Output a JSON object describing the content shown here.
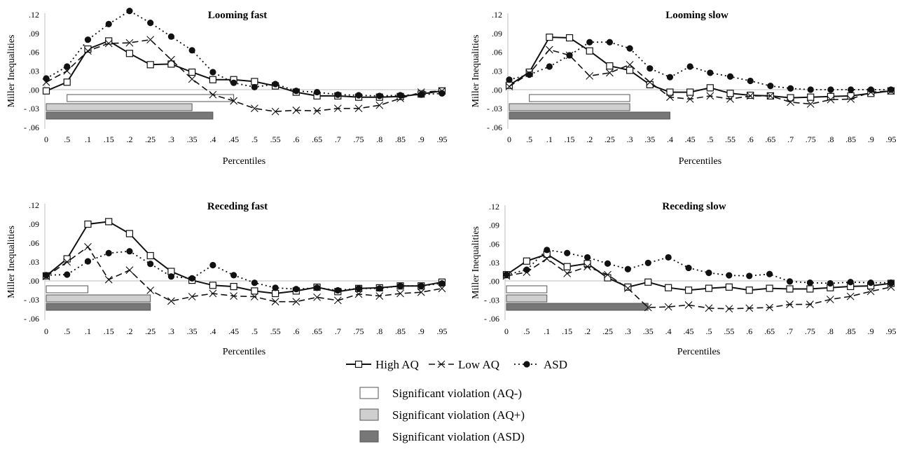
{
  "chart_data": [
    {
      "type": "line",
      "title": "Looming fast",
      "ylabel": "Miller Inequalities",
      "xlabel": "Percentiles",
      "x": [
        "0",
        ".5",
        ".1",
        ".15",
        ".2",
        ".25",
        ".3",
        ".35",
        ".4",
        ".45",
        ".5",
        ".55",
        ".6",
        ".65",
        ".7",
        ".75",
        ".8",
        ".85",
        ".9",
        ".95"
      ],
      "yticks": [
        ".12",
        ".09",
        ".06",
        ".03",
        ".00",
        "- .03",
        "- .06"
      ],
      "ylim": [
        -0.06,
        0.12
      ],
      "series": [
        {
          "name": "High AQ",
          "values": [
            -0.002,
            0.012,
            0.065,
            0.078,
            0.058,
            0.04,
            0.041,
            0.028,
            0.016,
            0.016,
            0.013,
            0.006,
            -0.004,
            -0.01,
            -0.01,
            -0.012,
            -0.012,
            -0.011,
            -0.007,
            -0.002
          ]
        },
        {
          "name": "Low AQ",
          "values": [
            0.012,
            0.03,
            0.062,
            0.074,
            0.075,
            0.08,
            0.048,
            0.017,
            -0.008,
            -0.018,
            -0.03,
            -0.035,
            -0.033,
            -0.034,
            -0.03,
            -0.03,
            -0.025,
            -0.014,
            -0.004,
            -0.002
          ]
        },
        {
          "name": "ASD",
          "values": [
            0.018,
            0.037,
            0.08,
            0.105,
            0.126,
            0.107,
            0.085,
            0.063,
            0.028,
            0.011,
            0.004,
            0.009,
            -0.002,
            -0.004,
            -0.008,
            -0.009,
            -0.01,
            -0.009,
            -0.008,
            -0.006
          ]
        }
      ],
      "significance": {
        "AQ-": [
          ".5",
          ".45"
        ],
        "AQ+": [
          "0",
          ".35"
        ],
        "ASD": [
          "0",
          ".4"
        ]
      }
    },
    {
      "type": "line",
      "title": "Looming slow",
      "ylabel": "Miller Inequalities",
      "xlabel": "Percentiles",
      "x": [
        "0",
        ".5",
        ".1",
        ".15",
        ".2",
        ".25",
        ".3",
        ".35",
        ".4",
        ".45",
        ".5",
        ".55",
        ".6",
        ".65",
        ".7",
        ".75",
        ".8",
        ".85",
        ".9",
        ".95"
      ],
      "yticks": [
        ".12",
        ".09",
        ".06",
        ".03",
        ".00",
        "- .03",
        "- .06"
      ],
      "ylim": [
        -0.06,
        0.12
      ],
      "series": [
        {
          "name": "High AQ",
          "values": [
            0.007,
            0.028,
            0.084,
            0.083,
            0.062,
            0.038,
            0.031,
            0.008,
            -0.004,
            -0.004,
            0.003,
            -0.006,
            -0.009,
            -0.01,
            -0.013,
            -0.012,
            -0.011,
            -0.01,
            -0.006,
            -0.002
          ]
        },
        {
          "name": "Low AQ",
          "values": [
            0.005,
            0.026,
            0.064,
            0.055,
            0.022,
            0.027,
            0.04,
            0.012,
            -0.012,
            -0.015,
            -0.01,
            -0.015,
            -0.01,
            -0.01,
            -0.02,
            -0.023,
            -0.016,
            -0.015,
            -0.004,
            -0.002
          ]
        },
        {
          "name": "ASD",
          "values": [
            0.016,
            0.024,
            0.037,
            0.055,
            0.076,
            0.076,
            0.066,
            0.034,
            0.02,
            0.037,
            0.027,
            0.021,
            0.014,
            0.006,
            0.002,
            0.0,
            0.0,
            0.0,
            0.0,
            0.0
          ]
        }
      ],
      "significance": {
        "AQ-": [
          ".5",
          ".3"
        ],
        "AQ+": [
          "0",
          ".3"
        ],
        "ASD": [
          "0",
          ".4"
        ]
      }
    },
    {
      "type": "line",
      "title": "Receding fast",
      "ylabel": "Miller Inequalities",
      "xlabel": "Percentiles",
      "x": [
        "0",
        ".5",
        ".1",
        ".15",
        ".2",
        ".25",
        ".3",
        ".35",
        ".4",
        ".45",
        ".5",
        ".55",
        ".6",
        ".65",
        ".7",
        ".75",
        ".8",
        ".85",
        ".9",
        ".95"
      ],
      "yticks": [
        ".12",
        ".09",
        ".06",
        ".03",
        ".00",
        "- .03",
        "- .06"
      ],
      "ylim": [
        -0.06,
        0.12
      ],
      "series": [
        {
          "name": "High AQ",
          "values": [
            0.008,
            0.035,
            0.09,
            0.094,
            0.075,
            0.04,
            0.015,
            0.001,
            -0.007,
            -0.009,
            -0.016,
            -0.02,
            -0.016,
            -0.01,
            -0.017,
            -0.012,
            -0.011,
            -0.008,
            -0.008,
            -0.002
          ]
        },
        {
          "name": "Low AQ",
          "values": [
            0.007,
            0.03,
            0.054,
            0.002,
            0.017,
            -0.015,
            -0.032,
            -0.025,
            -0.02,
            -0.024,
            -0.025,
            -0.033,
            -0.033,
            -0.026,
            -0.031,
            -0.021,
            -0.024,
            -0.02,
            -0.018,
            -0.012
          ]
        },
        {
          "name": "ASD",
          "values": [
            0.009,
            0.01,
            0.031,
            0.044,
            0.047,
            0.027,
            0.007,
            0.004,
            0.025,
            0.009,
            -0.003,
            -0.011,
            -0.013,
            -0.011,
            -0.015,
            -0.012,
            -0.012,
            -0.008,
            -0.008,
            -0.004
          ]
        }
      ],
      "significance": {
        "AQ-": [
          "0",
          ".1"
        ],
        "AQ+": [
          "0",
          ".25"
        ],
        "ASD": [
          "0",
          ".25"
        ]
      }
    },
    {
      "type": "line",
      "title": "Receding slow",
      "ylabel": "Miller Inequalities",
      "xlabel": "Percentiles",
      "x": [
        "0",
        ".5",
        ".1",
        ".15",
        ".2",
        ".25",
        ".3",
        ".35",
        ".4",
        ".45",
        ".5",
        ".55",
        ".6",
        ".65",
        ".7",
        ".75",
        ".8",
        ".85",
        ".9",
        ".95"
      ],
      "yticks": [
        ".12",
        ".09",
        ".06",
        ".03",
        ".00",
        "- .03",
        "- .06"
      ],
      "ylim": [
        -0.06,
        0.12
      ],
      "series": [
        {
          "name": "High AQ",
          "values": [
            0.01,
            0.032,
            0.043,
            0.023,
            0.028,
            0.005,
            -0.01,
            -0.002,
            -0.011,
            -0.015,
            -0.012,
            -0.01,
            -0.015,
            -0.012,
            -0.013,
            -0.013,
            -0.011,
            -0.009,
            -0.008,
            -0.004
          ]
        },
        {
          "name": "Low AQ",
          "values": [
            0.008,
            0.014,
            0.036,
            0.012,
            0.023,
            0.01,
            -0.012,
            -0.043,
            -0.042,
            -0.039,
            -0.044,
            -0.045,
            -0.044,
            -0.043,
            -0.038,
            -0.038,
            -0.03,
            -0.025,
            -0.017,
            -0.01
          ]
        },
        {
          "name": "ASD",
          "values": [
            0.01,
            0.018,
            0.05,
            0.045,
            0.038,
            0.028,
            0.019,
            0.029,
            0.038,
            0.021,
            0.013,
            0.009,
            0.008,
            0.011,
            -0.001,
            -0.003,
            -0.004,
            -0.002,
            -0.003,
            -0.003
          ]
        }
      ],
      "significance": {
        "AQ-": [
          "0",
          ".1"
        ],
        "AQ+": [
          "0",
          ".1"
        ],
        "ASD": [
          "0",
          ".35"
        ]
      }
    }
  ],
  "legend": {
    "series": [
      "High AQ",
      "Low AQ",
      "ASD"
    ],
    "bars": [
      {
        "key": "AQ-",
        "label": "Significant violation (AQ-)",
        "fill": "#ffffff"
      },
      {
        "key": "AQ+",
        "label": "Significant violation (AQ+)",
        "fill": "#cfcfcf"
      },
      {
        "key": "ASD",
        "label": "Significant violation (ASD)",
        "fill": "#777777"
      }
    ]
  },
  "colors": {
    "line": "#111111",
    "axis": "#bdbdbd",
    "bar_stroke": "#555555"
  }
}
